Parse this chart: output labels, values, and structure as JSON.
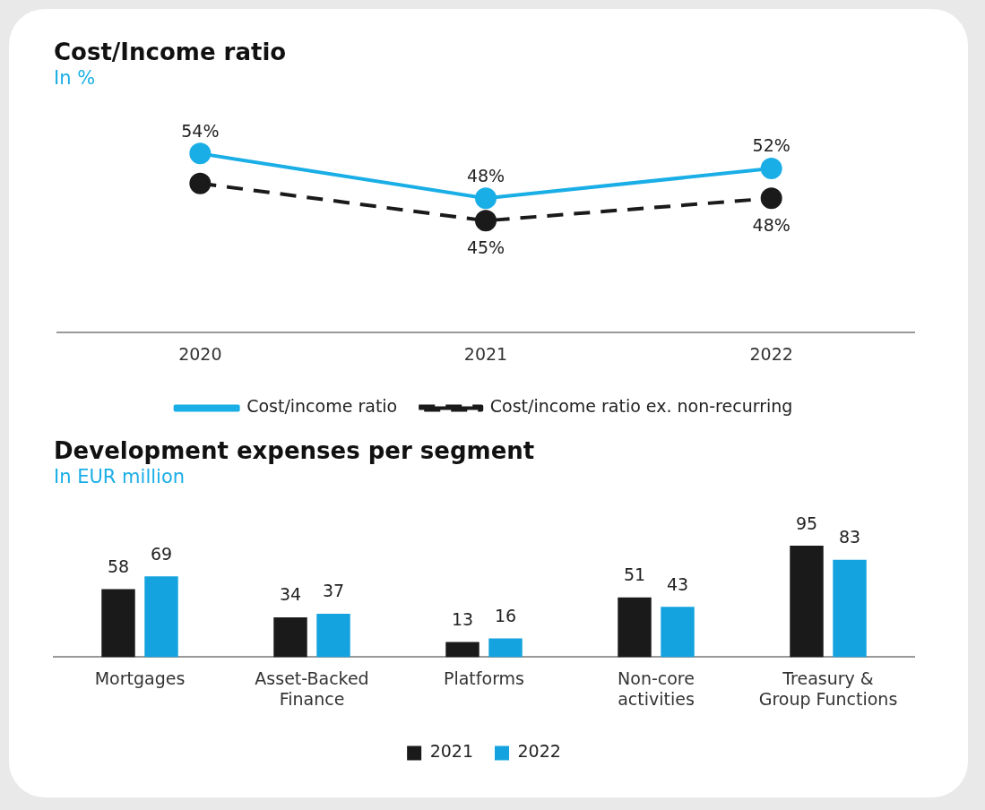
{
  "chart_data": [
    {
      "type": "line",
      "title": "Cost/Income ratio",
      "subtitle": "In %",
      "categories": [
        "2020",
        "2021",
        "2022"
      ],
      "tick_labels": "x",
      "grid": false,
      "legend": "bottom",
      "marker": "circle",
      "series": [
        {
          "name": "Cost/income ratio",
          "color": "#1aaee6",
          "values": [
            54,
            48,
            52
          ],
          "value_labels": [
            "54%",
            "48%",
            "52%"
          ],
          "line_style": "solid"
        },
        {
          "name": "Cost/income ratio ex. non-recurring",
          "color": "#1a1a1a",
          "values": [
            50,
            45,
            48
          ],
          "value_labels": [
            null,
            "45%",
            "48%"
          ],
          "line_style": "dashed"
        }
      ]
    },
    {
      "type": "bar",
      "title": "Development expenses per segment",
      "subtitle": "In EUR million",
      "categories": [
        "Mortgages",
        "Asset-Backed Finance",
        "Platforms",
        "Non-core activities",
        "Treasury & Group Functions"
      ],
      "tick_labels": "x",
      "grid": false,
      "legend": "bottom",
      "data_labels": true,
      "series": [
        {
          "name": "2021",
          "color": "#1a1a1a",
          "values": [
            58,
            34,
            13,
            51,
            95
          ]
        },
        {
          "name": "2022",
          "color": "#14a3de",
          "values": [
            69,
            37,
            16,
            43,
            83
          ]
        }
      ]
    }
  ]
}
